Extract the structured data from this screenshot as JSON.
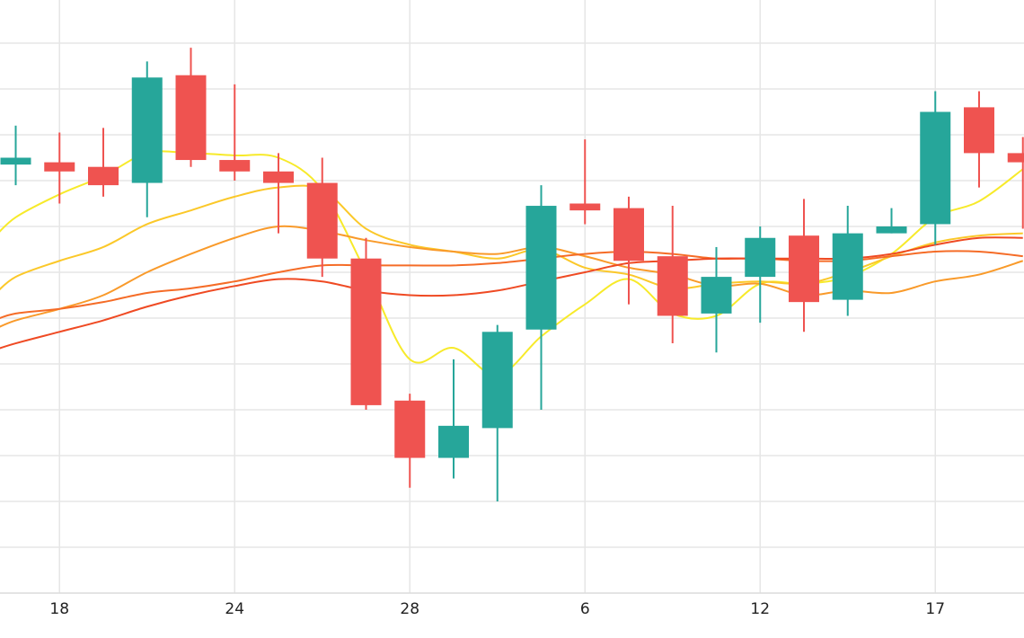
{
  "chart_data": {
    "type": "candlestick",
    "x_tick_labels": [
      "18",
      "24",
      "28",
      "6",
      "12",
      "17"
    ],
    "x_tick_index": [
      1,
      5,
      9,
      13,
      17,
      21
    ],
    "ylim": [
      0,
      13
    ],
    "grid": true,
    "candles": [
      {
        "i": 0,
        "open": 9.35,
        "close": 9.5,
        "high": 10.2,
        "low": 8.9
      },
      {
        "i": 1,
        "open": 9.4,
        "close": 9.2,
        "high": 10.05,
        "low": 8.5
      },
      {
        "i": 2,
        "open": 9.3,
        "close": 8.9,
        "high": 10.15,
        "low": 8.65
      },
      {
        "i": 3,
        "open": 8.95,
        "close": 11.25,
        "high": 11.6,
        "low": 8.2
      },
      {
        "i": 4,
        "open": 11.3,
        "close": 9.45,
        "high": 11.9,
        "low": 9.3
      },
      {
        "i": 5,
        "open": 9.45,
        "close": 9.2,
        "high": 11.1,
        "low": 9.0
      },
      {
        "i": 6,
        "open": 9.2,
        "close": 8.95,
        "high": 9.6,
        "low": 7.85
      },
      {
        "i": 7,
        "open": 8.95,
        "close": 7.3,
        "high": 9.5,
        "low": 6.9
      },
      {
        "i": 8,
        "open": 7.3,
        "close": 4.1,
        "high": 7.75,
        "low": 4.0
      },
      {
        "i": 9,
        "open": 4.2,
        "close": 2.95,
        "high": 4.35,
        "low": 2.3
      },
      {
        "i": 10,
        "open": 2.95,
        "close": 3.65,
        "high": 5.1,
        "low": 2.5
      },
      {
        "i": 11,
        "open": 3.6,
        "close": 5.7,
        "high": 5.85,
        "low": 2.0
      },
      {
        "i": 12,
        "open": 5.75,
        "close": 8.45,
        "high": 8.9,
        "low": 4.0
      },
      {
        "i": 13,
        "open": 8.5,
        "close": 8.35,
        "high": 9.9,
        "low": 8.05
      },
      {
        "i": 14,
        "open": 8.4,
        "close": 7.25,
        "high": 8.65,
        "low": 6.3
      },
      {
        "i": 15,
        "open": 7.35,
        "close": 6.05,
        "high": 8.45,
        "low": 5.45
      },
      {
        "i": 16,
        "open": 6.1,
        "close": 6.9,
        "high": 7.55,
        "low": 5.25
      },
      {
        "i": 17,
        "open": 6.9,
        "close": 7.75,
        "high": 8.0,
        "low": 5.9
      },
      {
        "i": 18,
        "open": 7.8,
        "close": 6.35,
        "high": 8.6,
        "low": 5.7
      },
      {
        "i": 19,
        "open": 6.4,
        "close": 7.85,
        "high": 8.45,
        "low": 6.05
      },
      {
        "i": 20,
        "open": 7.85,
        "close": 8.0,
        "high": 8.4,
        "low": 7.85
      },
      {
        "i": 21,
        "open": 8.05,
        "close": 10.5,
        "high": 10.95,
        "low": 7.6
      },
      {
        "i": 22,
        "open": 10.6,
        "close": 9.6,
        "high": 10.95,
        "low": 8.85
      },
      {
        "i": 23,
        "open": 9.6,
        "close": 9.4,
        "high": 9.95,
        "low": 7.95
      }
    ],
    "series": [
      {
        "color": "#f7ea2a",
        "x": [
          -0.5,
          0,
          1,
          2,
          3,
          4,
          5,
          6,
          7,
          8,
          9,
          10,
          11,
          12,
          13,
          14,
          15,
          16,
          17,
          18,
          19,
          20,
          21,
          22,
          23
        ],
        "y": [
          7.75,
          8.2,
          8.7,
          9.1,
          9.6,
          9.6,
          9.55,
          9.5,
          8.8,
          7.0,
          5.1,
          5.35,
          4.75,
          5.6,
          6.3,
          6.85,
          6.1,
          6.05,
          6.75,
          6.75,
          6.9,
          7.4,
          8.2,
          8.55,
          9.25
        ]
      },
      {
        "color": "#fbc829",
        "x": [
          -0.5,
          0,
          1,
          2,
          3,
          4,
          5,
          6,
          7,
          8,
          9,
          10,
          11,
          12,
          13,
          14,
          15,
          16,
          17,
          18,
          19,
          20,
          21,
          22,
          23
        ],
        "y": [
          6.5,
          6.9,
          7.25,
          7.55,
          8.05,
          8.35,
          8.65,
          8.85,
          8.8,
          7.95,
          7.6,
          7.45,
          7.3,
          7.5,
          7.1,
          6.95,
          6.65,
          6.75,
          6.8,
          6.75,
          7.0,
          7.35,
          7.65,
          7.8,
          7.85
        ]
      },
      {
        "color": "#f99a2a",
        "x": [
          -0.5,
          0,
          1,
          2,
          3,
          4,
          5,
          6,
          7,
          8,
          9,
          10,
          11,
          12,
          13,
          14,
          15,
          16,
          17,
          18,
          19,
          20,
          21,
          22,
          23
        ],
        "y": [
          5.75,
          5.95,
          6.2,
          6.5,
          7.0,
          7.4,
          7.75,
          8.0,
          7.9,
          7.7,
          7.55,
          7.45,
          7.4,
          7.55,
          7.35,
          7.1,
          6.95,
          6.7,
          6.75,
          6.5,
          6.6,
          6.55,
          6.8,
          6.95,
          7.25
        ]
      },
      {
        "color": "#f56c27",
        "x": [
          -0.5,
          0,
          1,
          2,
          3,
          4,
          5,
          6,
          7,
          8,
          9,
          10,
          11,
          12,
          13,
          14,
          15,
          16,
          17,
          18,
          19,
          20,
          21,
          22,
          23
        ],
        "y": [
          5.95,
          6.1,
          6.2,
          6.35,
          6.55,
          6.65,
          6.8,
          7.0,
          7.15,
          7.15,
          7.15,
          7.15,
          7.2,
          7.3,
          7.4,
          7.45,
          7.4,
          7.3,
          7.3,
          7.25,
          7.25,
          7.35,
          7.45,
          7.45,
          7.35
        ]
      },
      {
        "color": "#ef4a23",
        "x": [
          -0.5,
          0,
          1,
          2,
          3,
          4,
          5,
          6,
          7,
          8,
          9,
          10,
          11,
          12,
          13,
          14,
          15,
          16,
          17,
          18,
          19,
          20,
          21,
          22,
          23
        ],
        "y": [
          5.3,
          5.45,
          5.7,
          5.95,
          6.25,
          6.5,
          6.7,
          6.85,
          6.8,
          6.6,
          6.5,
          6.5,
          6.6,
          6.8,
          7.0,
          7.2,
          7.25,
          7.3,
          7.3,
          7.3,
          7.3,
          7.4,
          7.6,
          7.75,
          7.75
        ]
      }
    ],
    "up_color": "#26a69a",
    "down_color": "#ef5350",
    "grid_color": "#e6e6e6"
  }
}
